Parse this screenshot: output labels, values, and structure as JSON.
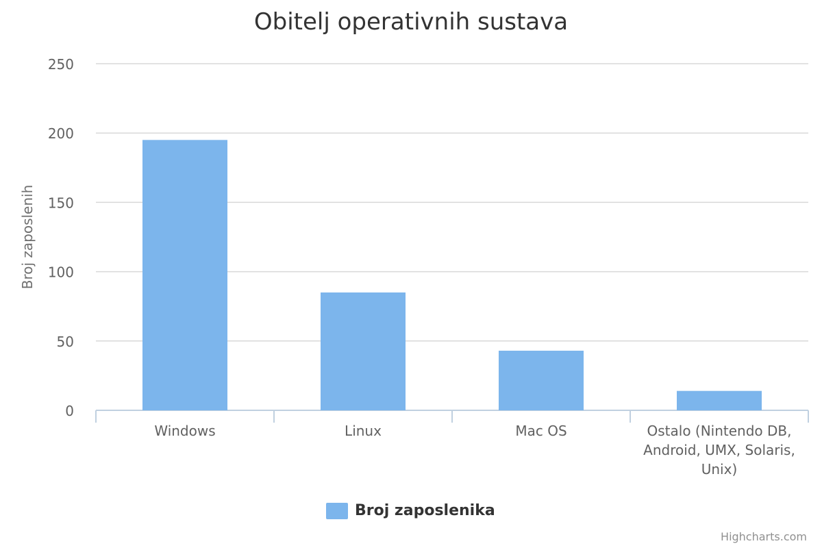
{
  "chart_data": {
    "type": "bar",
    "title": "Obitelj operativnih sustava",
    "ylabel": "Broj zaposlenih",
    "xlabel": "",
    "categories": [
      [
        "Windows"
      ],
      [
        "Linux"
      ],
      [
        "Mac OS"
      ],
      [
        "Ostalo (Nintendo DB,",
        "Android, UMX, Solaris,",
        "Unix)"
      ]
    ],
    "series": [
      {
        "name": "Broj zaposlenika",
        "values": [
          195,
          85,
          43,
          14
        ],
        "color": "#7cb5ec"
      }
    ],
    "ylim": [
      0,
      250
    ],
    "yticks": [
      0,
      50,
      100,
      150,
      200,
      250
    ],
    "grid": true,
    "legend_position": "bottom-center",
    "credits": "Highcharts.com"
  }
}
